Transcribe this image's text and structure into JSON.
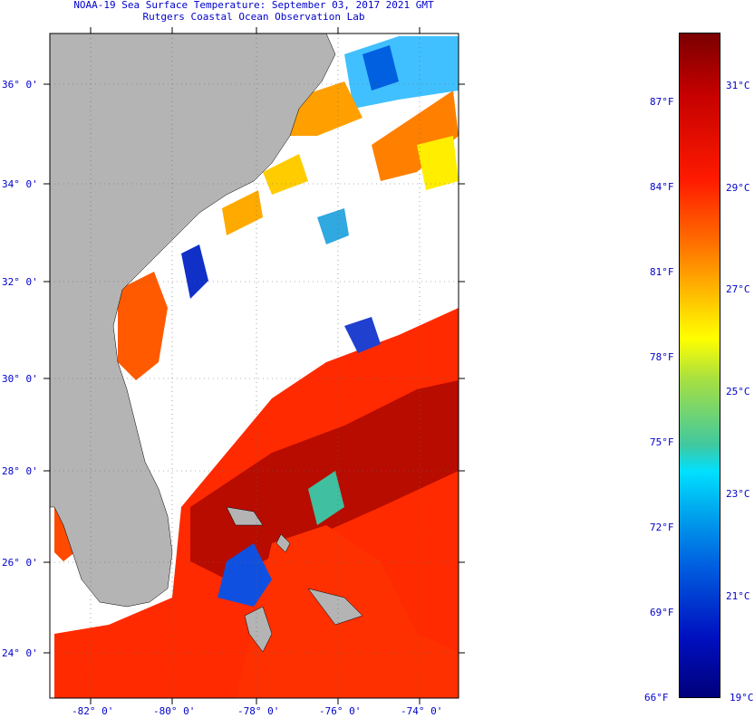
{
  "header": {
    "title_line1": "NOAA-19 Sea Surface Temperature:  September 03, 2017 2021 GMT",
    "title_line2": "Rutgers Coastal Ocean Observation Lab"
  },
  "map": {
    "lat_labels": [
      "36° 0'",
      "34° 0'",
      "32° 0'",
      "30° 0'",
      "28° 0'",
      "26° 0'",
      "24° 0'"
    ],
    "lon_labels": [
      "-82° 0'",
      "-80° 0'",
      "-78° 0'",
      "-76° 0'",
      "-74° 0'"
    ],
    "colors": {
      "land": "#b4b4b4",
      "cloud": "#ffffff",
      "gulf_stream": "#cc1a00",
      "coastal_warm": "#ff6a00",
      "cool": "#1040d0"
    }
  },
  "colorbar": {
    "fahrenheit_labels": [
      "87°F",
      "84°F",
      "81°F",
      "78°F",
      "75°F",
      "72°F",
      "69°F",
      "66°F"
    ],
    "celsius_labels": [
      "31°C",
      "29°C",
      "27°C",
      "25°C",
      "23°C",
      "21°C",
      "19°C"
    ],
    "range_f": [
      66,
      89
    ],
    "range_c": [
      19,
      32
    ]
  }
}
